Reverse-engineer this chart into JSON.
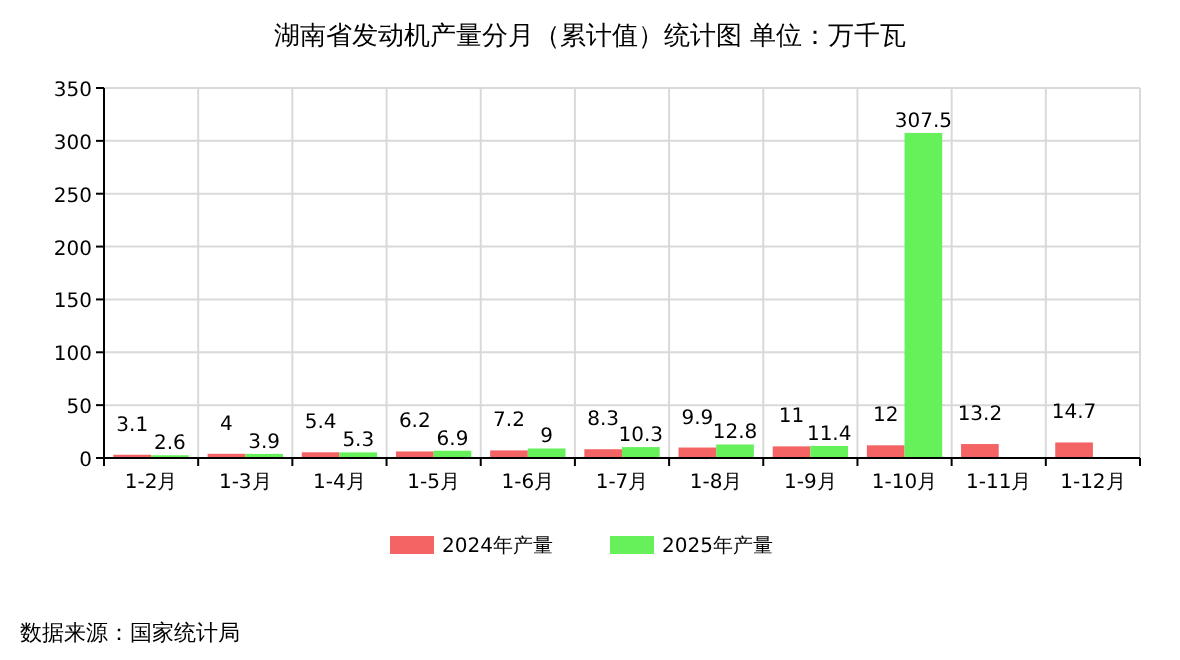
{
  "chart_data": {
    "type": "bar",
    "title": "湖南省发动机产量分月（累计值）统计图 单位：万千瓦",
    "categories": [
      "1-2月",
      "1-3月",
      "1-4月",
      "1-5月",
      "1-6月",
      "1-7月",
      "1-8月",
      "1-9月",
      "1-10月",
      "1-11月",
      "1-12月"
    ],
    "series": [
      {
        "name": "2024年产量",
        "color": "#f46464",
        "values": [
          3.1,
          4,
          5.4,
          6.2,
          7.2,
          8.3,
          9.9,
          11,
          12,
          13.2,
          14.7
        ]
      },
      {
        "name": "2025年产量",
        "color": "#66f05a",
        "values": [
          2.6,
          3.9,
          5.3,
          6.9,
          9,
          10.3,
          12.8,
          11.4,
          307.5,
          null,
          null
        ]
      }
    ],
    "ylim": [
      0,
      350
    ],
    "yticks": [
      0,
      50,
      100,
      150,
      200,
      250,
      300,
      350
    ],
    "grid": true,
    "legend": "bottom",
    "data_labels": true,
    "annotations": [
      "数据来源：国家统计局"
    ]
  }
}
